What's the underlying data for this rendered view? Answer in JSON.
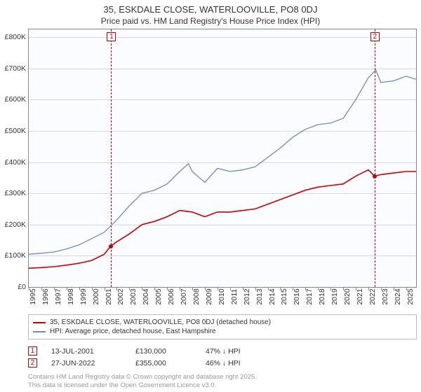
{
  "title": "35, ESKDALE CLOSE, WATERLOOVILLE, PO8 0DJ",
  "subtitle": "Price paid vs. HM Land Registry's House Price Index (HPI)",
  "chart": {
    "type": "line",
    "background_color": "#fafcff",
    "grid_color": "#d8d8dc",
    "border_color": "#888888",
    "x_range": [
      1995,
      2025.8
    ],
    "y_range": [
      0,
      825000
    ],
    "y_ticks": [
      0,
      100000,
      200000,
      300000,
      400000,
      500000,
      600000,
      700000,
      800000
    ],
    "y_tick_labels": [
      "£0",
      "£100K",
      "£200K",
      "£300K",
      "£400K",
      "£500K",
      "£600K",
      "£700K",
      "£800K"
    ],
    "x_ticks": [
      1995,
      1996,
      1997,
      1998,
      1999,
      2000,
      2001,
      2002,
      2003,
      2004,
      2005,
      2006,
      2007,
      2008,
      2009,
      2010,
      2011,
      2012,
      2013,
      2014,
      2015,
      2016,
      2017,
      2018,
      2019,
      2020,
      2021,
      2022,
      2023,
      2024,
      2025
    ],
    "label_fontsize": 10.5,
    "series": [
      {
        "name": "price_paid",
        "label": "35, ESKDALE CLOSE, WATERLOOVILLE, PO8 0DJ (detached house)",
        "color": "#cc0000",
        "line_width": 1.6,
        "data": [
          [
            1995,
            60000
          ],
          [
            1996,
            62000
          ],
          [
            1997,
            65000
          ],
          [
            1998,
            70000
          ],
          [
            1999,
            76000
          ],
          [
            2000,
            85000
          ],
          [
            2001,
            105000
          ],
          [
            2001.5,
            130000
          ],
          [
            2002,
            145000
          ],
          [
            2003,
            170000
          ],
          [
            2004,
            200000
          ],
          [
            2005,
            210000
          ],
          [
            2006,
            225000
          ],
          [
            2007,
            245000
          ],
          [
            2008,
            240000
          ],
          [
            2009,
            225000
          ],
          [
            2010,
            240000
          ],
          [
            2011,
            240000
          ],
          [
            2012,
            245000
          ],
          [
            2013,
            250000
          ],
          [
            2014,
            265000
          ],
          [
            2015,
            280000
          ],
          [
            2016,
            295000
          ],
          [
            2017,
            310000
          ],
          [
            2018,
            320000
          ],
          [
            2019,
            325000
          ],
          [
            2020,
            330000
          ],
          [
            2021,
            355000
          ],
          [
            2022,
            375000
          ],
          [
            2022.5,
            355000
          ],
          [
            2023,
            360000
          ],
          [
            2024,
            365000
          ],
          [
            2025,
            370000
          ],
          [
            2025.8,
            370000
          ]
        ]
      },
      {
        "name": "hpi",
        "label": "HPI: Average price, detached house, East Hampshire",
        "color": "#6b8bc4",
        "line_width": 1.3,
        "data": [
          [
            1995,
            105000
          ],
          [
            1996,
            108000
          ],
          [
            1997,
            112000
          ],
          [
            1998,
            122000
          ],
          [
            1999,
            135000
          ],
          [
            2000,
            155000
          ],
          [
            2001,
            175000
          ],
          [
            2002,
            215000
          ],
          [
            2003,
            260000
          ],
          [
            2004,
            300000
          ],
          [
            2005,
            310000
          ],
          [
            2006,
            330000
          ],
          [
            2007,
            370000
          ],
          [
            2007.7,
            395000
          ],
          [
            2008,
            370000
          ],
          [
            2009,
            335000
          ],
          [
            2010,
            380000
          ],
          [
            2011,
            370000
          ],
          [
            2012,
            375000
          ],
          [
            2013,
            385000
          ],
          [
            2014,
            415000
          ],
          [
            2015,
            445000
          ],
          [
            2016,
            480000
          ],
          [
            2017,
            505000
          ],
          [
            2018,
            520000
          ],
          [
            2019,
            525000
          ],
          [
            2020,
            540000
          ],
          [
            2021,
            600000
          ],
          [
            2022,
            670000
          ],
          [
            2022.6,
            695000
          ],
          [
            2023,
            655000
          ],
          [
            2024,
            660000
          ],
          [
            2025,
            675000
          ],
          [
            2025.8,
            665000
          ]
        ]
      }
    ],
    "markers": [
      {
        "id": "1",
        "x": 2001.55,
        "color": "#cc0000",
        "dot_y": 130000
      },
      {
        "id": "2",
        "x": 2022.5,
        "color": "#cc0000",
        "dot_y": 355000
      }
    ]
  },
  "legend": {
    "border_color": "#bbbbbb"
  },
  "sales": [
    {
      "id": "1",
      "date": "13-JUL-2001",
      "price": "£130,000",
      "hpi": "47% ↓ HPI",
      "color": "#cc0000"
    },
    {
      "id": "2",
      "date": "27-JUN-2022",
      "price": "£355,000",
      "hpi": "46% ↓ HPI",
      "color": "#cc0000"
    }
  ],
  "footnote_line1": "Contains HM Land Registry data © Crown copyright and database right 2025.",
  "footnote_line2": "This data is licensed under the Open Government Licence v3.0."
}
